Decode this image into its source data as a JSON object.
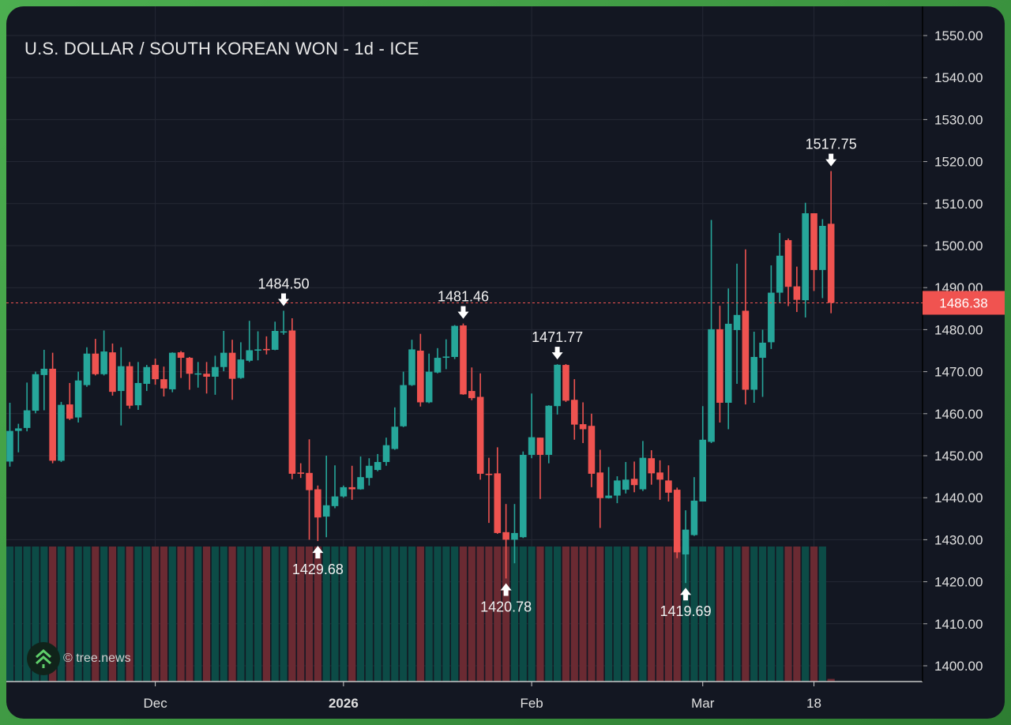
{
  "title": "U.S. DOLLAR / SOUTH KOREAN WON - 1d - ICE",
  "watermark": "© tree.news",
  "colors": {
    "up": "#26a69a",
    "down": "#ef5350",
    "volume_up": "#0c4b46",
    "volume_down": "#6a2a32",
    "background": "#131722",
    "current_price": "#f05350"
  },
  "chart_data": {
    "type": "candlestick",
    "ylim": [
      1395,
      1555
    ],
    "y_ticks": [
      "1400.00",
      "1410.00",
      "1420.00",
      "1430.00",
      "1440.00",
      "1450.00",
      "1460.00",
      "1470.00",
      "1480.00",
      "1490.00",
      "1500.00",
      "1510.00",
      "1520.00",
      "1530.00",
      "1540.00",
      "1550.00"
    ],
    "x_ticks": [
      {
        "label": "Dec",
        "candle": 17,
        "bold": false
      },
      {
        "label": "2026",
        "candle": 39,
        "bold": true
      },
      {
        "label": "Feb",
        "candle": 61,
        "bold": false
      },
      {
        "label": "Mar",
        "candle": 81,
        "bold": false
      },
      {
        "label": "18",
        "candle": 94,
        "bold": false
      }
    ],
    "grid": true,
    "current_price": "1486.38",
    "ohlc": [
      [
        1448.6,
        1462.6,
        1447.4,
        1455.9
      ],
      [
        1455.9,
        1457.6,
        1450.8,
        1456.5
      ],
      [
        1456.6,
        1467.4,
        1455.8,
        1460.8
      ],
      [
        1460.7,
        1470,
        1460.1,
        1469.4
      ],
      [
        1469.2,
        1475.2,
        1460.8,
        1470.7
      ],
      [
        1470.7,
        1474.5,
        1448.2,
        1448.8
      ],
      [
        1448.8,
        1462.8,
        1448.5,
        1462.1
      ],
      [
        1462.2,
        1467.3,
        1458.5,
        1458.8
      ],
      [
        1459.1,
        1470,
        1457.9,
        1467.9
      ],
      [
        1466.8,
        1475.8,
        1466.4,
        1474.3
      ],
      [
        1474.3,
        1477.8,
        1469.1,
        1469.4
      ],
      [
        1469.4,
        1479.8,
        1469.1,
        1474.8
      ],
      [
        1474.6,
        1476.7,
        1464.3,
        1465.2
      ],
      [
        1465.4,
        1475.8,
        1457.2,
        1471.3
      ],
      [
        1471.3,
        1472.3,
        1461.2,
        1461.9
      ],
      [
        1462,
        1472.3,
        1460.9,
        1467.3
      ],
      [
        1467.1,
        1471.6,
        1465.4,
        1471.1
      ],
      [
        1471.6,
        1473.1,
        1466.9,
        1468.2
      ],
      [
        1468.2,
        1471.2,
        1464.1,
        1466
      ],
      [
        1465.8,
        1474.6,
        1465.1,
        1474.5
      ],
      [
        1474.6,
        1474.9,
        1468.5,
        1473.3
      ],
      [
        1473.3,
        1473.5,
        1465.7,
        1469.5
      ],
      [
        1469.4,
        1472.3,
        1466.2,
        1469.6
      ],
      [
        1469.5,
        1472.3,
        1464.8,
        1468.8
      ],
      [
        1468.8,
        1473.8,
        1464.5,
        1471.1
      ],
      [
        1471.1,
        1479.7,
        1470.1,
        1474.5
      ],
      [
        1474.5,
        1477.6,
        1463.3,
        1468.3
      ],
      [
        1468.5,
        1477,
        1468.3,
        1472.9
      ],
      [
        1472.6,
        1482.1,
        1472.3,
        1475.1
      ],
      [
        1475.1,
        1479.6,
        1472.7,
        1475.3
      ],
      [
        1475.4,
        1478.4,
        1474.1,
        1475.1
      ],
      [
        1475.2,
        1481.9,
        1475.1,
        1479.7
      ],
      [
        1479.5,
        1484.5,
        1478.8,
        1479.6
      ],
      [
        1479.8,
        1482.7,
        1444.4,
        1445.7
      ],
      [
        1446,
        1448.2,
        1444.7,
        1445.8
      ],
      [
        1445.9,
        1453.9,
        1430,
        1441.8
      ],
      [
        1442,
        1442.9,
        1429.68,
        1435.3
      ],
      [
        1435.5,
        1450,
        1430.6,
        1438.2
      ],
      [
        1438,
        1447.7,
        1437.5,
        1440.3
      ],
      [
        1440.3,
        1442.9,
        1440,
        1442.5
      ],
      [
        1442.5,
        1447.6,
        1439.5,
        1442
      ],
      [
        1442,
        1449.8,
        1441.9,
        1444.9
      ],
      [
        1444.7,
        1449.4,
        1442.9,
        1447.6
      ],
      [
        1446.6,
        1450.4,
        1446.3,
        1448.5
      ],
      [
        1448.5,
        1454.3,
        1447.6,
        1452.5
      ],
      [
        1451.6,
        1461.5,
        1451.4,
        1456.9
      ],
      [
        1457,
        1470,
        1456.8,
        1466.8
      ],
      [
        1466.8,
        1477.6,
        1466.6,
        1475.3
      ],
      [
        1475,
        1479,
        1461.7,
        1462.7
      ],
      [
        1462.7,
        1474.3,
        1462.5,
        1470
      ],
      [
        1469.8,
        1475.6,
        1469.6,
        1473.3
      ],
      [
        1473.4,
        1477.7,
        1470.6,
        1473.6
      ],
      [
        1473.5,
        1481.1,
        1473,
        1480.9
      ],
      [
        1481,
        1481.46,
        1464.5,
        1464.6
      ],
      [
        1465.4,
        1471,
        1463.2,
        1463.7
      ],
      [
        1464,
        1469.6,
        1444.3,
        1445.7
      ],
      [
        1445.7,
        1449.5,
        1434,
        1445.5
      ],
      [
        1445.8,
        1452,
        1431.4,
        1431.6
      ],
      [
        1431.8,
        1438.5,
        1420.78,
        1430
      ],
      [
        1430,
        1438.5,
        1424.4,
        1431.6
      ],
      [
        1430.6,
        1451,
        1430.4,
        1450.2
      ],
      [
        1450.2,
        1464.8,
        1449.4,
        1454.4
      ],
      [
        1454.3,
        1454.3,
        1439.7,
        1450.2
      ],
      [
        1450.2,
        1462,
        1448.2,
        1461.9
      ],
      [
        1461.8,
        1471.77,
        1459.8,
        1471.65
      ],
      [
        1471.6,
        1471.8,
        1462.8,
        1463.1
      ],
      [
        1463.3,
        1468.2,
        1453.8,
        1457.4
      ],
      [
        1457.5,
        1462.7,
        1453,
        1456.3
      ],
      [
        1457.1,
        1460,
        1442.5,
        1445.7
      ],
      [
        1446,
        1451.4,
        1432.8,
        1439.9
      ],
      [
        1439.9,
        1447.3,
        1439.8,
        1440.5
      ],
      [
        1440.5,
        1445.1,
        1438.7,
        1444.1
      ],
      [
        1441.9,
        1448.5,
        1441,
        1444.3
      ],
      [
        1444.5,
        1448.6,
        1441.3,
        1443
      ],
      [
        1442,
        1453.5,
        1441.6,
        1449.5
      ],
      [
        1449.4,
        1451.3,
        1443.1,
        1445.8
      ],
      [
        1446,
        1448.9,
        1439.5,
        1444.3
      ],
      [
        1444.1,
        1447.7,
        1439.1,
        1441.2
      ],
      [
        1441.9,
        1442.4,
        1425.6,
        1427
      ],
      [
        1426.5,
        1437,
        1419.69,
        1432.4
      ],
      [
        1431.1,
        1444.9,
        1430.9,
        1439.3
      ],
      [
        1439.1,
        1461.8,
        1439.1,
        1453.8
      ],
      [
        1453.3,
        1506.1,
        1453,
        1480.1
      ],
      [
        1480.1,
        1485.7,
        1457.9,
        1462.6
      ],
      [
        1462.6,
        1489.8,
        1456.3,
        1481.4
      ],
      [
        1479.9,
        1495.7,
        1467.1,
        1483.5
      ],
      [
        1484.5,
        1499.1,
        1462.2,
        1465.7
      ],
      [
        1465.7,
        1479.5,
        1462.6,
        1473.5
      ],
      [
        1473.3,
        1480,
        1464,
        1476.9
      ],
      [
        1477,
        1495.3,
        1475.4,
        1488.8
      ],
      [
        1488.8,
        1503,
        1486.5,
        1497.6
      ],
      [
        1501.3,
        1501.7,
        1485.6,
        1490.2
      ],
      [
        1490.3,
        1495,
        1484.2,
        1487.1
      ],
      [
        1487,
        1510.2,
        1482.9,
        1507.7
      ],
      [
        1507.7,
        1507.7,
        1489.2,
        1494.2
      ],
      [
        1494.2,
        1506.3,
        1487.5,
        1504.7
      ],
      [
        1505.2,
        1517.75,
        1483.9,
        1486.38
      ]
    ],
    "volume_relative_last": 0.02,
    "annotations": [
      {
        "label": "1484.50",
        "candle": 32,
        "kind": "high"
      },
      {
        "label": "1481.46",
        "candle": 53,
        "kind": "high"
      },
      {
        "label": "1471.77",
        "candle": 64,
        "kind": "high"
      },
      {
        "label": "1517.75",
        "candle": 96,
        "kind": "high"
      },
      {
        "label": "1429.68",
        "candle": 36,
        "kind": "low"
      },
      {
        "label": "1420.78",
        "candle": 58,
        "kind": "low"
      },
      {
        "label": "1419.69",
        "candle": 79,
        "kind": "low"
      }
    ]
  }
}
